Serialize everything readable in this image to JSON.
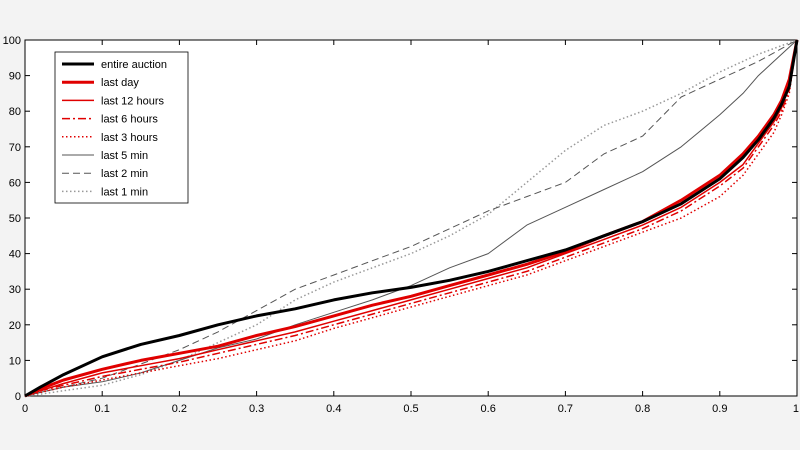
{
  "chart_data": {
    "type": "line",
    "title": "",
    "xlabel": "",
    "ylabel": "",
    "xlim": [
      0,
      1
    ],
    "ylim": [
      0,
      100
    ],
    "xticks": [
      0,
      0.1,
      0.2,
      0.3,
      0.4,
      0.5,
      0.6,
      0.7,
      0.8,
      0.9,
      1
    ],
    "xtick_labels": [
      "0",
      "0.1",
      "0.2",
      "0.3",
      "0.4",
      "0.5",
      "0.6",
      "0.7",
      "0.8",
      "0.9",
      "1"
    ],
    "yticks": [
      0,
      10,
      20,
      30,
      40,
      50,
      60,
      70,
      80,
      90,
      100
    ],
    "ytick_labels": [
      "0",
      "10",
      "20",
      "30",
      "40",
      "50",
      "60",
      "70",
      "80",
      "90",
      "100"
    ],
    "grid": false,
    "legend_position": "top-left",
    "series": [
      {
        "name": "entire auction",
        "color": "#000000",
        "style": "solid",
        "width": 3,
        "x": [
          0,
          0.02,
          0.05,
          0.1,
          0.15,
          0.2,
          0.25,
          0.3,
          0.35,
          0.4,
          0.45,
          0.5,
          0.55,
          0.6,
          0.65,
          0.7,
          0.75,
          0.8,
          0.85,
          0.9,
          0.93,
          0.95,
          0.97,
          0.98,
          0.99,
          1
        ],
        "y": [
          0,
          2.5,
          6,
          11,
          14.5,
          17,
          20,
          22.5,
          24.5,
          27,
          29,
          30.5,
          32.5,
          35,
          38,
          41,
          45,
          49,
          54,
          61,
          67,
          72,
          78,
          82,
          87,
          100
        ]
      },
      {
        "name": "last day",
        "color": "#e00000",
        "style": "solid",
        "width": 3,
        "x": [
          0,
          0.02,
          0.05,
          0.1,
          0.15,
          0.2,
          0.25,
          0.3,
          0.35,
          0.4,
          0.45,
          0.5,
          0.55,
          0.6,
          0.65,
          0.7,
          0.75,
          0.8,
          0.85,
          0.9,
          0.93,
          0.95,
          0.97,
          0.98,
          0.99,
          1
        ],
        "y": [
          0,
          2,
          4.5,
          7.5,
          10,
          12,
          14,
          17,
          19.5,
          22.5,
          25.5,
          28,
          31,
          34,
          37,
          40.5,
          45,
          49,
          55,
          62,
          68,
          73,
          79,
          83,
          89,
          100
        ]
      },
      {
        "name": "last 12 hours",
        "color": "#e00000",
        "style": "solid",
        "width": 1.5,
        "x": [
          0,
          0.02,
          0.05,
          0.1,
          0.15,
          0.2,
          0.25,
          0.3,
          0.35,
          0.4,
          0.45,
          0.5,
          0.55,
          0.6,
          0.65,
          0.7,
          0.75,
          0.8,
          0.85,
          0.9,
          0.93,
          0.95,
          0.97,
          0.98,
          0.99,
          1
        ],
        "y": [
          0,
          1.5,
          3.5,
          6.5,
          8.5,
          10.5,
          13,
          15.5,
          18,
          21,
          24,
          27,
          30,
          33,
          36,
          40,
          44,
          48,
          53,
          60,
          65,
          71,
          77,
          81,
          88,
          100
        ]
      },
      {
        "name": "last 6 hours",
        "color": "#e00000",
        "style": "dashdot",
        "width": 1.5,
        "x": [
          0,
          0.02,
          0.05,
          0.1,
          0.15,
          0.2,
          0.25,
          0.3,
          0.35,
          0.4,
          0.45,
          0.5,
          0.55,
          0.6,
          0.65,
          0.7,
          0.75,
          0.8,
          0.85,
          0.9,
          0.93,
          0.95,
          0.97,
          0.98,
          0.99,
          1
        ],
        "y": [
          0,
          1.5,
          3,
          5.5,
          7.5,
          9.5,
          12,
          14.5,
          17,
          20,
          23,
          26,
          29,
          32,
          35,
          39,
          43,
          47,
          52,
          59,
          64,
          70,
          76,
          80,
          86,
          100
        ]
      },
      {
        "name": "last 3 hours",
        "color": "#e00000",
        "style": "dotted",
        "width": 1.5,
        "x": [
          0,
          0.02,
          0.05,
          0.1,
          0.15,
          0.2,
          0.25,
          0.3,
          0.35,
          0.4,
          0.45,
          0.5,
          0.55,
          0.6,
          0.65,
          0.7,
          0.75,
          0.8,
          0.85,
          0.9,
          0.93,
          0.95,
          0.97,
          0.98,
          0.99,
          1
        ],
        "y": [
          0,
          1,
          2.5,
          4.5,
          6.5,
          8.5,
          10.5,
          13,
          15.5,
          19,
          22,
          25,
          28,
          31,
          34,
          38,
          42,
          46,
          50,
          56,
          62,
          68,
          74,
          79,
          85,
          100
        ]
      },
      {
        "name": "last 5 min",
        "color": "#555555",
        "style": "solid",
        "width": 1,
        "x": [
          0,
          0.02,
          0.05,
          0.1,
          0.15,
          0.2,
          0.25,
          0.3,
          0.35,
          0.4,
          0.45,
          0.5,
          0.55,
          0.6,
          0.65,
          0.7,
          0.75,
          0.8,
          0.85,
          0.9,
          0.93,
          0.95,
          0.97,
          0.99,
          1
        ],
        "y": [
          0,
          1,
          2.5,
          4,
          6.5,
          10,
          13.5,
          16,
          20,
          23.5,
          27,
          31,
          36,
          40,
          48,
          53,
          58,
          63,
          70,
          79,
          85,
          90,
          94,
          98,
          100
        ]
      },
      {
        "name": "last 2 min",
        "color": "#555555",
        "style": "dashed",
        "width": 1,
        "x": [
          0,
          0.02,
          0.05,
          0.1,
          0.15,
          0.2,
          0.25,
          0.3,
          0.35,
          0.4,
          0.45,
          0.5,
          0.55,
          0.6,
          0.65,
          0.7,
          0.75,
          0.8,
          0.85,
          0.9,
          0.95,
          1
        ],
        "y": [
          0,
          1,
          2.5,
          5,
          9,
          13,
          18,
          24,
          30,
          34,
          38,
          42,
          47,
          52,
          56,
          60,
          68,
          73,
          84,
          89,
          94,
          100
        ]
      },
      {
        "name": "last 1 min",
        "color": "#999999",
        "style": "dotted",
        "width": 1.5,
        "x": [
          0,
          0.02,
          0.05,
          0.1,
          0.15,
          0.2,
          0.25,
          0.3,
          0.35,
          0.4,
          0.45,
          0.5,
          0.55,
          0.6,
          0.65,
          0.7,
          0.75,
          0.8,
          0.85,
          0.9,
          0.95,
          1
        ],
        "y": [
          0,
          0.5,
          1.5,
          3,
          6,
          10,
          15,
          20,
          27,
          32,
          36,
          40,
          45,
          51,
          60,
          69,
          76,
          80,
          85,
          91,
          96,
          100
        ]
      }
    ]
  }
}
